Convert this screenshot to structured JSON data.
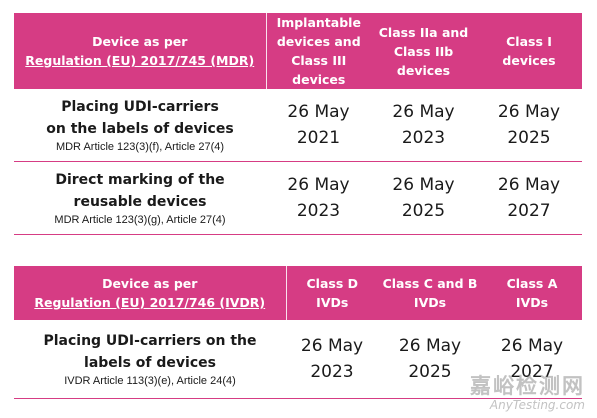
{
  "mdr": {
    "header": {
      "col1_line1": "Device as per",
      "col1_line2": "Regulation (EU) 2017/745 (MDR)",
      "columns": [
        [
          "Implantable",
          "devices and",
          "Class III devices"
        ],
        [
          "Class IIa and",
          "Class IIb",
          "devices"
        ],
        [
          "Class I",
          "devices"
        ]
      ]
    },
    "rows": [
      {
        "title": [
          "Placing UDI-carriers",
          "on the labels of devices"
        ],
        "ref": "MDR Article 123(3)(f), Article 27(4)",
        "dates": [
          [
            "26 May",
            "2021"
          ],
          [
            "26 May",
            "2023"
          ],
          [
            "26 May",
            "2025"
          ]
        ]
      },
      {
        "title": [
          "Direct marking of the",
          "reusable devices"
        ],
        "ref": "MDR Article 123(3)(g), Article 27(4)",
        "dates": [
          [
            "26 May",
            "2023"
          ],
          [
            "26 May",
            "2025"
          ],
          [
            "26 May",
            "2027"
          ]
        ]
      }
    ]
  },
  "ivdr": {
    "header": {
      "col1_line1": "Device as per",
      "col1_line2": "Regulation (EU) 2017/746 (IVDR)",
      "columns": [
        [
          "Class D",
          "IVDs"
        ],
        [
          "Class C and B",
          "IVDs"
        ],
        [
          "Class A",
          "IVDs"
        ]
      ]
    },
    "rows": [
      {
        "title": [
          "Placing UDI-carriers on the",
          "labels of devices"
        ],
        "ref": "IVDR Article 113(3)(e), Article 24(4)",
        "dates": [
          [
            "26 May",
            "2023"
          ],
          [
            "26 May",
            "2025"
          ],
          [
            "26 May",
            "2027"
          ]
        ]
      }
    ]
  },
  "watermark": {
    "line1": "嘉峪检测网",
    "line2": "AnyTesting.com"
  },
  "colors": {
    "header_bg": "#d63c84",
    "header_text": "#ffffff",
    "rule": "#d63c84"
  }
}
